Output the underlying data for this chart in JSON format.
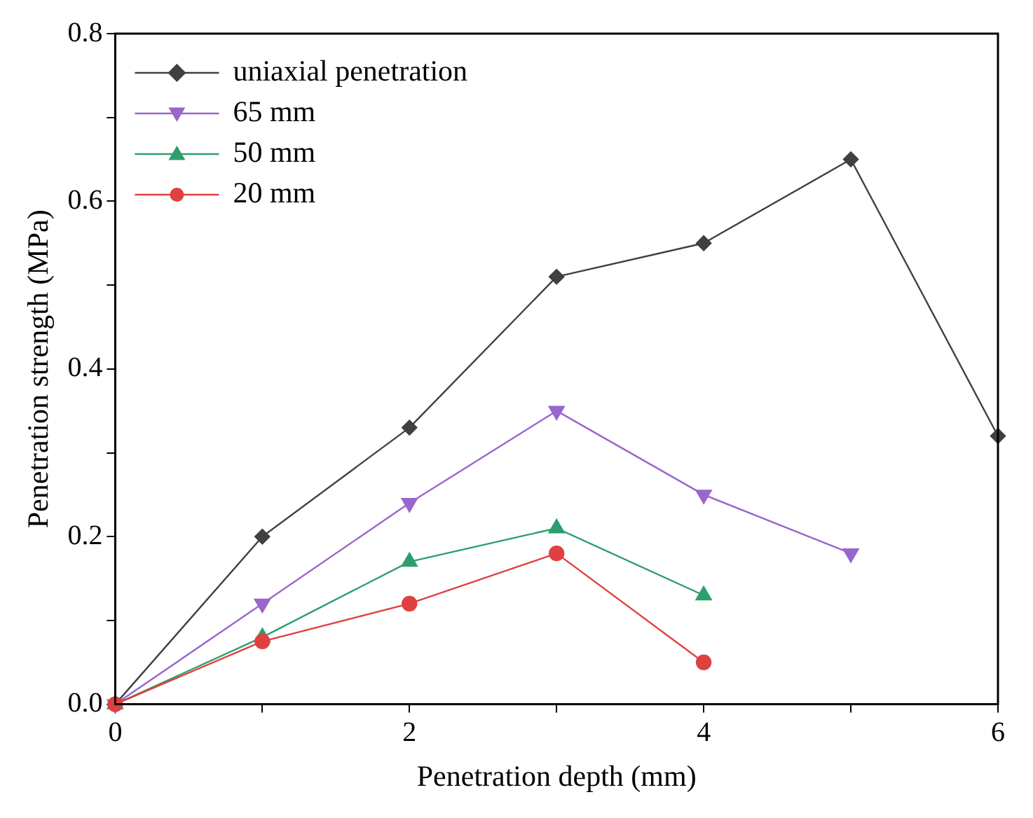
{
  "chart_data": {
    "type": "line",
    "xlabel": "Penetration depth (mm)",
    "ylabel": "Penetration strength (MPa)",
    "xlim": [
      0,
      6
    ],
    "xticks": [
      0,
      {
        "value": 1,
        "label": null
      },
      2,
      {
        "value": 3,
        "label": null
      },
      4,
      {
        "value": 5,
        "label": null
      },
      6
    ],
    "ylim": [
      0,
      0.8
    ],
    "yticks": [
      "0.0",
      {
        "value": 0.1,
        "label": null
      },
      0.2,
      {
        "value": 0.3,
        "label": null
      },
      0.4,
      {
        "value": 0.5,
        "label": null
      },
      0.6,
      {
        "value": 0.7,
        "label": null
      },
      0.8
    ],
    "legend": "top left",
    "grid": false,
    "line_style": "solid",
    "series": [
      {
        "name": "uniaxial penetration",
        "color": "#404040",
        "marker": "diamond",
        "x": [
          0,
          1,
          2,
          3,
          4,
          5,
          6
        ],
        "values": [
          0,
          0.2,
          0.33,
          0.51,
          0.55,
          0.65,
          0.32
        ]
      },
      {
        "name": "65 mm",
        "color": "#9966cc",
        "marker": "triangle_down",
        "x": [
          0,
          1,
          2,
          3,
          4,
          5
        ],
        "values": [
          0,
          0.12,
          0.24,
          0.35,
          0.25,
          0.18
        ]
      },
      {
        "name": "50 mm",
        "color": "#2e9e6e",
        "marker": "triangle",
        "x": [
          0,
          1,
          2,
          3,
          4
        ],
        "values": [
          0,
          0.08,
          0.17,
          0.21,
          0.13
        ]
      },
      {
        "name": "20 mm",
        "color": "#e04040",
        "marker": "circle",
        "x": [
          0,
          1,
          2,
          3,
          4
        ],
        "values": [
          0,
          0.075,
          0.12,
          0.18,
          0.05
        ]
      }
    ]
  }
}
